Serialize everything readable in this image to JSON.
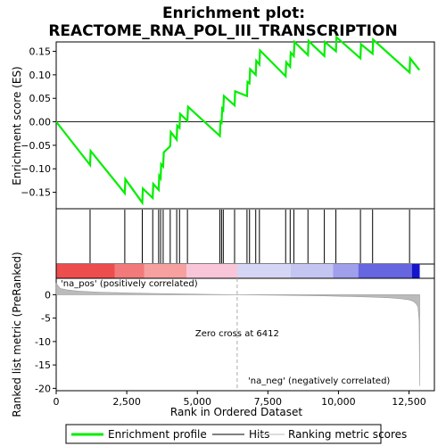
{
  "chart_data": {
    "type": "line",
    "title_lines": [
      "Enrichment plot:",
      "REACTOME_RNA_POL_III_TRANSCRIPTION"
    ],
    "xlabel": "Rank in Ordered Dataset",
    "es_ylabel": "Enrichment score (ES)",
    "rank_ylabel": "Ranked list metric (PreRanked)",
    "xlim": [
      0,
      13400
    ],
    "x_ticks": [
      0,
      2500,
      5000,
      7500,
      10000,
      12500
    ],
    "x_tick_labels": [
      "0",
      "2,500",
      "5,000",
      "7,500",
      "10,000",
      "12,500"
    ],
    "es_ylim": [
      -0.185,
      0.17
    ],
    "es_ticks": [
      -0.15,
      -0.1,
      -0.05,
      0.0,
      0.05,
      0.1,
      0.15
    ],
    "es_tick_labels": [
      "−0.15",
      "−0.10",
      "−0.05",
      "0.00",
      "0.05",
      "0.10",
      "0.15"
    ],
    "rank_ylim": [
      -20.5,
      3.5
    ],
    "rank_ticks": [
      0,
      -5,
      -10,
      -15,
      -20
    ],
    "rank_tick_labels": [
      "0",
      "-5",
      "-10",
      "-15",
      "-20"
    ],
    "grid": false,
    "legend_position": "bottom",
    "series": [
      {
        "name": "Enrichment profile",
        "color": "#00ee00",
        "x": [
          0,
          1200,
          1220,
          2430,
          2450,
          3050,
          3070,
          3420,
          3440,
          3630,
          3650,
          3700,
          3720,
          3790,
          3810,
          4040,
          4060,
          4270,
          4290,
          4370,
          4390,
          4650,
          4670,
          5800,
          5820,
          5860,
          5880,
          5920,
          5940,
          6320,
          6340,
          6760,
          6780,
          6850,
          6870,
          7070,
          7090,
          7200,
          7220,
          8130,
          8150,
          8290,
          8310,
          8420,
          8440,
          8920,
          8940,
          9500,
          9520,
          9910,
          9930,
          10780,
          10800,
          11210,
          11230,
          12520,
          12540,
          12870
        ],
        "y": [
          0.0,
          -0.092,
          -0.062,
          -0.152,
          -0.122,
          -0.172,
          -0.142,
          -0.162,
          -0.132,
          -0.145,
          -0.115,
          -0.12,
          -0.09,
          -0.095,
          -0.065,
          -0.052,
          -0.022,
          -0.038,
          -0.008,
          -0.013,
          0.017,
          0.002,
          0.032,
          -0.03,
          0.0,
          -0.002,
          0.028,
          0.025,
          0.055,
          0.035,
          0.065,
          0.055,
          0.085,
          0.082,
          0.112,
          0.1,
          0.13,
          0.122,
          0.152,
          0.097,
          0.127,
          0.117,
          0.147,
          0.14,
          0.17,
          0.142,
          0.172,
          0.14,
          0.17,
          0.15,
          0.18,
          0.135,
          0.165,
          0.145,
          0.175,
          0.105,
          0.135,
          0.11
        ]
      }
    ],
    "hits": [
      1200,
      2430,
      3050,
      3420,
      3630,
      3700,
      3790,
      4040,
      4270,
      4370,
      4650,
      5800,
      5860,
      5920,
      6320,
      6760,
      6850,
      7070,
      7200,
      8130,
      8290,
      8420,
      8920,
      9500,
      9910,
      10780,
      11210,
      12520
    ],
    "ranked_metric": {
      "x": [
        0,
        150,
        400,
        800,
        1500,
        2500,
        3500,
        4500,
        5500,
        6412,
        7500,
        8500,
        9500,
        10500,
        11200,
        11800,
        12200,
        12500,
        12650,
        12750,
        12820,
        12860,
        12880
      ],
      "y": [
        2.4,
        1.3,
        1.0,
        0.75,
        0.55,
        0.38,
        0.25,
        0.15,
        0.06,
        0.0,
        -0.08,
        -0.16,
        -0.26,
        -0.4,
        -0.52,
        -0.66,
        -0.85,
        -1.1,
        -1.4,
        -1.9,
        -2.6,
        -5.5,
        -19.5
      ]
    },
    "annotations": {
      "zero_cross_label": "Zero cross at 6412",
      "zero_cross_x": 6412,
      "pos_label": "'na_pos' (positively correlated)",
      "neg_label": "'na_neg' (negatively correlated)"
    },
    "legend": [
      {
        "label": "Enrichment profile",
        "color": "#00ee00"
      },
      {
        "label": "Hits",
        "color": "#000000"
      },
      {
        "label": "Ranking metric scores",
        "color": "#bbbbbb"
      }
    ],
    "colors": {
      "pos_label": "#ff0000",
      "neg_label": "#0000cc",
      "metric_fill": "#bbbbbb",
      "hit_line": "#000000",
      "zero_cross_line": "#aaaaaa"
    },
    "heat_bar": {
      "stops": [
        {
          "x": 0,
          "color": "#ee4d4d"
        },
        {
          "x": 2050,
          "color": "#ee4d4d"
        },
        {
          "x": 2060,
          "color": "#f37a7a"
        },
        {
          "x": 3100,
          "color": "#f37a7a"
        },
        {
          "x": 3110,
          "color": "#f7a0a0"
        },
        {
          "x": 4600,
          "color": "#f7a0a0"
        },
        {
          "x": 4610,
          "color": "#f8c6d8"
        },
        {
          "x": 6400,
          "color": "#f8c6d8"
        },
        {
          "x": 6420,
          "color": "#d5d5f5"
        },
        {
          "x": 8300,
          "color": "#d5d5f5"
        },
        {
          "x": 8310,
          "color": "#c5c5f2"
        },
        {
          "x": 9800,
          "color": "#c5c5f2"
        },
        {
          "x": 9810,
          "color": "#9f9fec"
        },
        {
          "x": 10700,
          "color": "#9f9fec"
        },
        {
          "x": 10710,
          "color": "#6666e0"
        },
        {
          "x": 12600,
          "color": "#6666e0"
        },
        {
          "x": 12610,
          "color": "#1414cc"
        },
        {
          "x": 12880,
          "color": "#1414cc"
        }
      ]
    }
  }
}
